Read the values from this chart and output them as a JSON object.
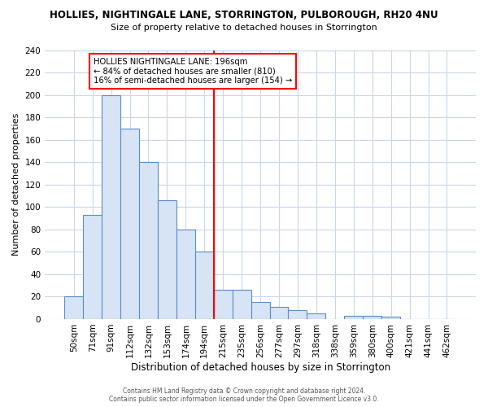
{
  "title": "HOLLIES, NIGHTINGALE LANE, STORRINGTON, PULBOROUGH, RH20 4NU",
  "subtitle": "Size of property relative to detached houses in Storrington",
  "xlabel": "Distribution of detached houses by size in Storrington",
  "ylabel": "Number of detached properties",
  "bar_labels": [
    "50sqm",
    "71sqm",
    "91sqm",
    "112sqm",
    "132sqm",
    "153sqm",
    "174sqm",
    "194sqm",
    "215sqm",
    "235sqm",
    "256sqm",
    "277sqm",
    "297sqm",
    "318sqm",
    "338sqm",
    "359sqm",
    "380sqm",
    "400sqm",
    "421sqm",
    "441sqm",
    "462sqm"
  ],
  "bar_values": [
    20,
    93,
    200,
    170,
    140,
    106,
    80,
    60,
    26,
    26,
    15,
    11,
    8,
    5,
    0,
    3,
    3,
    2,
    0,
    0,
    0
  ],
  "bar_color": "#d6e4f5",
  "bar_edge_color": "#5b8cc8",
  "reference_line_x": 7.5,
  "annotation_line1": "HOLLIES NIGHTINGALE LANE: 196sqm",
  "annotation_line2": "← 84% of detached houses are smaller (810)",
  "annotation_line3": "16% of semi-detached houses are larger (154) →",
  "ylim": [
    0,
    240
  ],
  "yticks": [
    0,
    20,
    40,
    60,
    80,
    100,
    120,
    140,
    160,
    180,
    200,
    220,
    240
  ],
  "footer_line1": "Contains HM Land Registry data © Crown copyright and database right 2024.",
  "footer_line2": "Contains public sector information licensed under the Open Government Licence v3.0.",
  "background_color": "#ffffff",
  "grid_color": "#c8d8e8",
  "title_fontsize": 8.5,
  "subtitle_fontsize": 8.0,
  "xlabel_fontsize": 8.5,
  "ylabel_fontsize": 8.0,
  "tick_fontsize": 7.5,
  "footer_fontsize": 5.5
}
